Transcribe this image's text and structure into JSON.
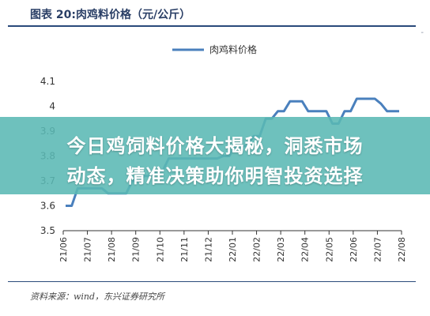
{
  "figure": {
    "title": "图表 20:肉鸡料价格（元/公斤）",
    "source": "资料来源：wind，东兴证券研究所",
    "corner_mark": "-"
  },
  "overlay": {
    "line1": "今日鸡饲料价格大揭秘，洞悉市场",
    "line2": "动态，精准决策助你明智投资选择"
  },
  "chart_data": {
    "type": "line",
    "title": "",
    "xlabel": "",
    "ylabel": "",
    "ylim": [
      3.5,
      4.1
    ],
    "yticks": [
      3.5,
      3.6,
      3.7,
      3.8,
      3.9,
      4.0,
      4.1
    ],
    "ytick_labels": [
      "3.5",
      "3.6",
      "3.7",
      "3.8",
      "3.9",
      "4",
      "4.1"
    ],
    "xtick_labels": [
      "21/06",
      "21/07",
      "21/08",
      "21/09",
      "21/10",
      "21/11",
      "21/12",
      "22/01",
      "22/02",
      "22/03",
      "22/04",
      "22/05",
      "22/06",
      "22/07",
      "22/08"
    ],
    "legend": {
      "position": "top-center"
    },
    "grid": false,
    "color": "#4a80bd",
    "series": [
      {
        "name": "肉鸡料价格",
        "values": [
          3.6,
          3.6,
          3.67,
          3.67,
          3.67,
          3.67,
          3.67,
          3.65,
          3.65,
          3.65,
          3.65,
          3.7,
          3.7,
          3.72,
          3.72,
          3.74,
          3.74,
          3.79,
          3.79,
          3.79,
          3.79,
          3.79,
          3.79,
          3.79,
          3.79,
          3.79,
          3.8,
          3.8,
          3.84,
          3.84,
          3.84,
          3.88,
          3.88,
          3.95,
          3.95,
          3.98,
          3.98,
          4.02,
          4.02,
          4.02,
          3.98,
          3.98,
          3.98,
          3.98,
          3.93,
          3.93,
          3.98,
          3.98,
          4.03,
          4.03,
          4.03,
          4.03,
          4.01,
          3.98,
          3.98,
          3.98
        ]
      }
    ]
  }
}
